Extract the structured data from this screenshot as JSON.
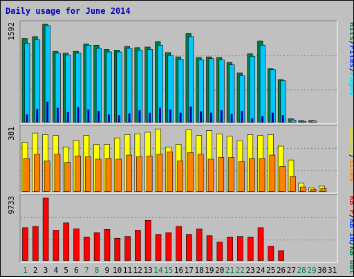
{
  "chart_data": {
    "type": "bar",
    "title": "Daily usage for June 2014",
    "categories": [
      "1",
      "2",
      "3",
      "4",
      "5",
      "6",
      "7",
      "8",
      "9",
      "10",
      "11",
      "12",
      "13",
      "14",
      "15",
      "16",
      "17",
      "18",
      "19",
      "20",
      "21",
      "22",
      "23",
      "24",
      "25",
      "26",
      "27",
      "28",
      "29",
      "30",
      "31"
    ],
    "weekend_days": [
      "1",
      "7",
      "8",
      "14",
      "15",
      "21",
      "22",
      "28",
      "29"
    ],
    "panels": [
      {
        "id": "top",
        "max_label": "1592",
        "max_value": 1592,
        "legend": [
          {
            "text": "Hits",
            "color": "#008040"
          },
          {
            "text": "/",
            "color": "#000000"
          },
          {
            "text": "Files",
            "color": "#0040ff"
          },
          {
            "text": "/",
            "color": "#000000"
          },
          {
            "text": "Pages",
            "color": "#00e0ff"
          }
        ],
        "series": [
          {
            "name": "Hits",
            "color": "#008040",
            "values": [
              1360,
              1390,
              1592,
              1150,
              1120,
              1150,
              1270,
              1250,
              1180,
              1170,
              1230,
              1210,
              1220,
              1310,
              1130,
              1060,
              1440,
              1050,
              1060,
              1050,
              970,
              800,
              1110,
              1320,
              870,
              690,
              50,
              20,
              20,
              0,
              0
            ]
          },
          {
            "name": "Files",
            "color": "#00c8ff",
            "values": [
              1280,
              1340,
              1570,
              1120,
              1090,
              1120,
              1250,
              1200,
              1140,
              1140,
              1200,
              1170,
              1180,
              1250,
              1080,
              1020,
              1390,
              1010,
              1030,
              1010,
              930,
              750,
              1070,
              1250,
              850,
              670,
              30,
              10,
              15,
              0,
              0
            ]
          },
          {
            "name": "Pages",
            "color": "#0000a0",
            "values": [
              120,
              210,
              330,
              230,
              160,
              240,
              200,
              180,
              120,
              110,
              140,
              190,
              150,
              230,
              200,
              150,
              250,
              170,
              150,
              190,
              130,
              180,
              60,
              90,
              150,
              110,
              0,
              0,
              0,
              0,
              0
            ]
          }
        ]
      },
      {
        "id": "middle",
        "max_label": "381",
        "max_value": 381,
        "legend": [
          {
            "text": "Visits",
            "color": "#e0e000"
          },
          {
            "text": "/",
            "color": "#000000"
          },
          {
            "text": "Sites",
            "color": "#ff8000"
          }
        ],
        "series": [
          {
            "name": "Visits",
            "color": "#ffff00",
            "values": [
              298,
              355,
              345,
              340,
              270,
              310,
              340,
              285,
              285,
              325,
              345,
              350,
              360,
              380,
              270,
              285,
              375,
              340,
              370,
              350,
              335,
              310,
              345,
              340,
              345,
              275,
              190,
              50,
              20,
              30,
              0
            ]
          },
          {
            "name": "Sites",
            "color": "#ff8000",
            "values": [
              200,
              225,
              185,
              225,
              175,
              215,
              210,
              195,
              200,
              195,
              220,
              210,
              215,
              225,
              240,
              185,
              235,
              225,
              195,
              205,
              205,
              180,
              200,
              200,
              220,
              150,
              90,
              25,
              10,
              15,
              0
            ]
          }
        ]
      },
      {
        "id": "bottom",
        "max_label": "9733",
        "max_value": 9733,
        "legend": [
          {
            "text": "KB F",
            "color": "#ff0000"
          },
          {
            "text": "/",
            "color": "#000000"
          },
          {
            "text": "KB In",
            "color": "#0040ff"
          },
          {
            "text": "/",
            "color": "#000000"
          },
          {
            "text": "KB Out",
            "color": "#008040"
          }
        ],
        "series": [
          {
            "name": "KB F",
            "color": "#ff0000",
            "values": [
              5100,
              5300,
              9733,
              4710,
              5850,
              4910,
              3650,
              4330,
              4820,
              3430,
              3720,
              4710,
              6240,
              4040,
              4330,
              5300,
              4040,
              4880,
              3850,
              2850,
              3650,
              3720,
              3650,
              5100,
              2210,
              1520,
              0,
              0,
              0,
              0,
              0
            ]
          }
        ]
      }
    ]
  }
}
